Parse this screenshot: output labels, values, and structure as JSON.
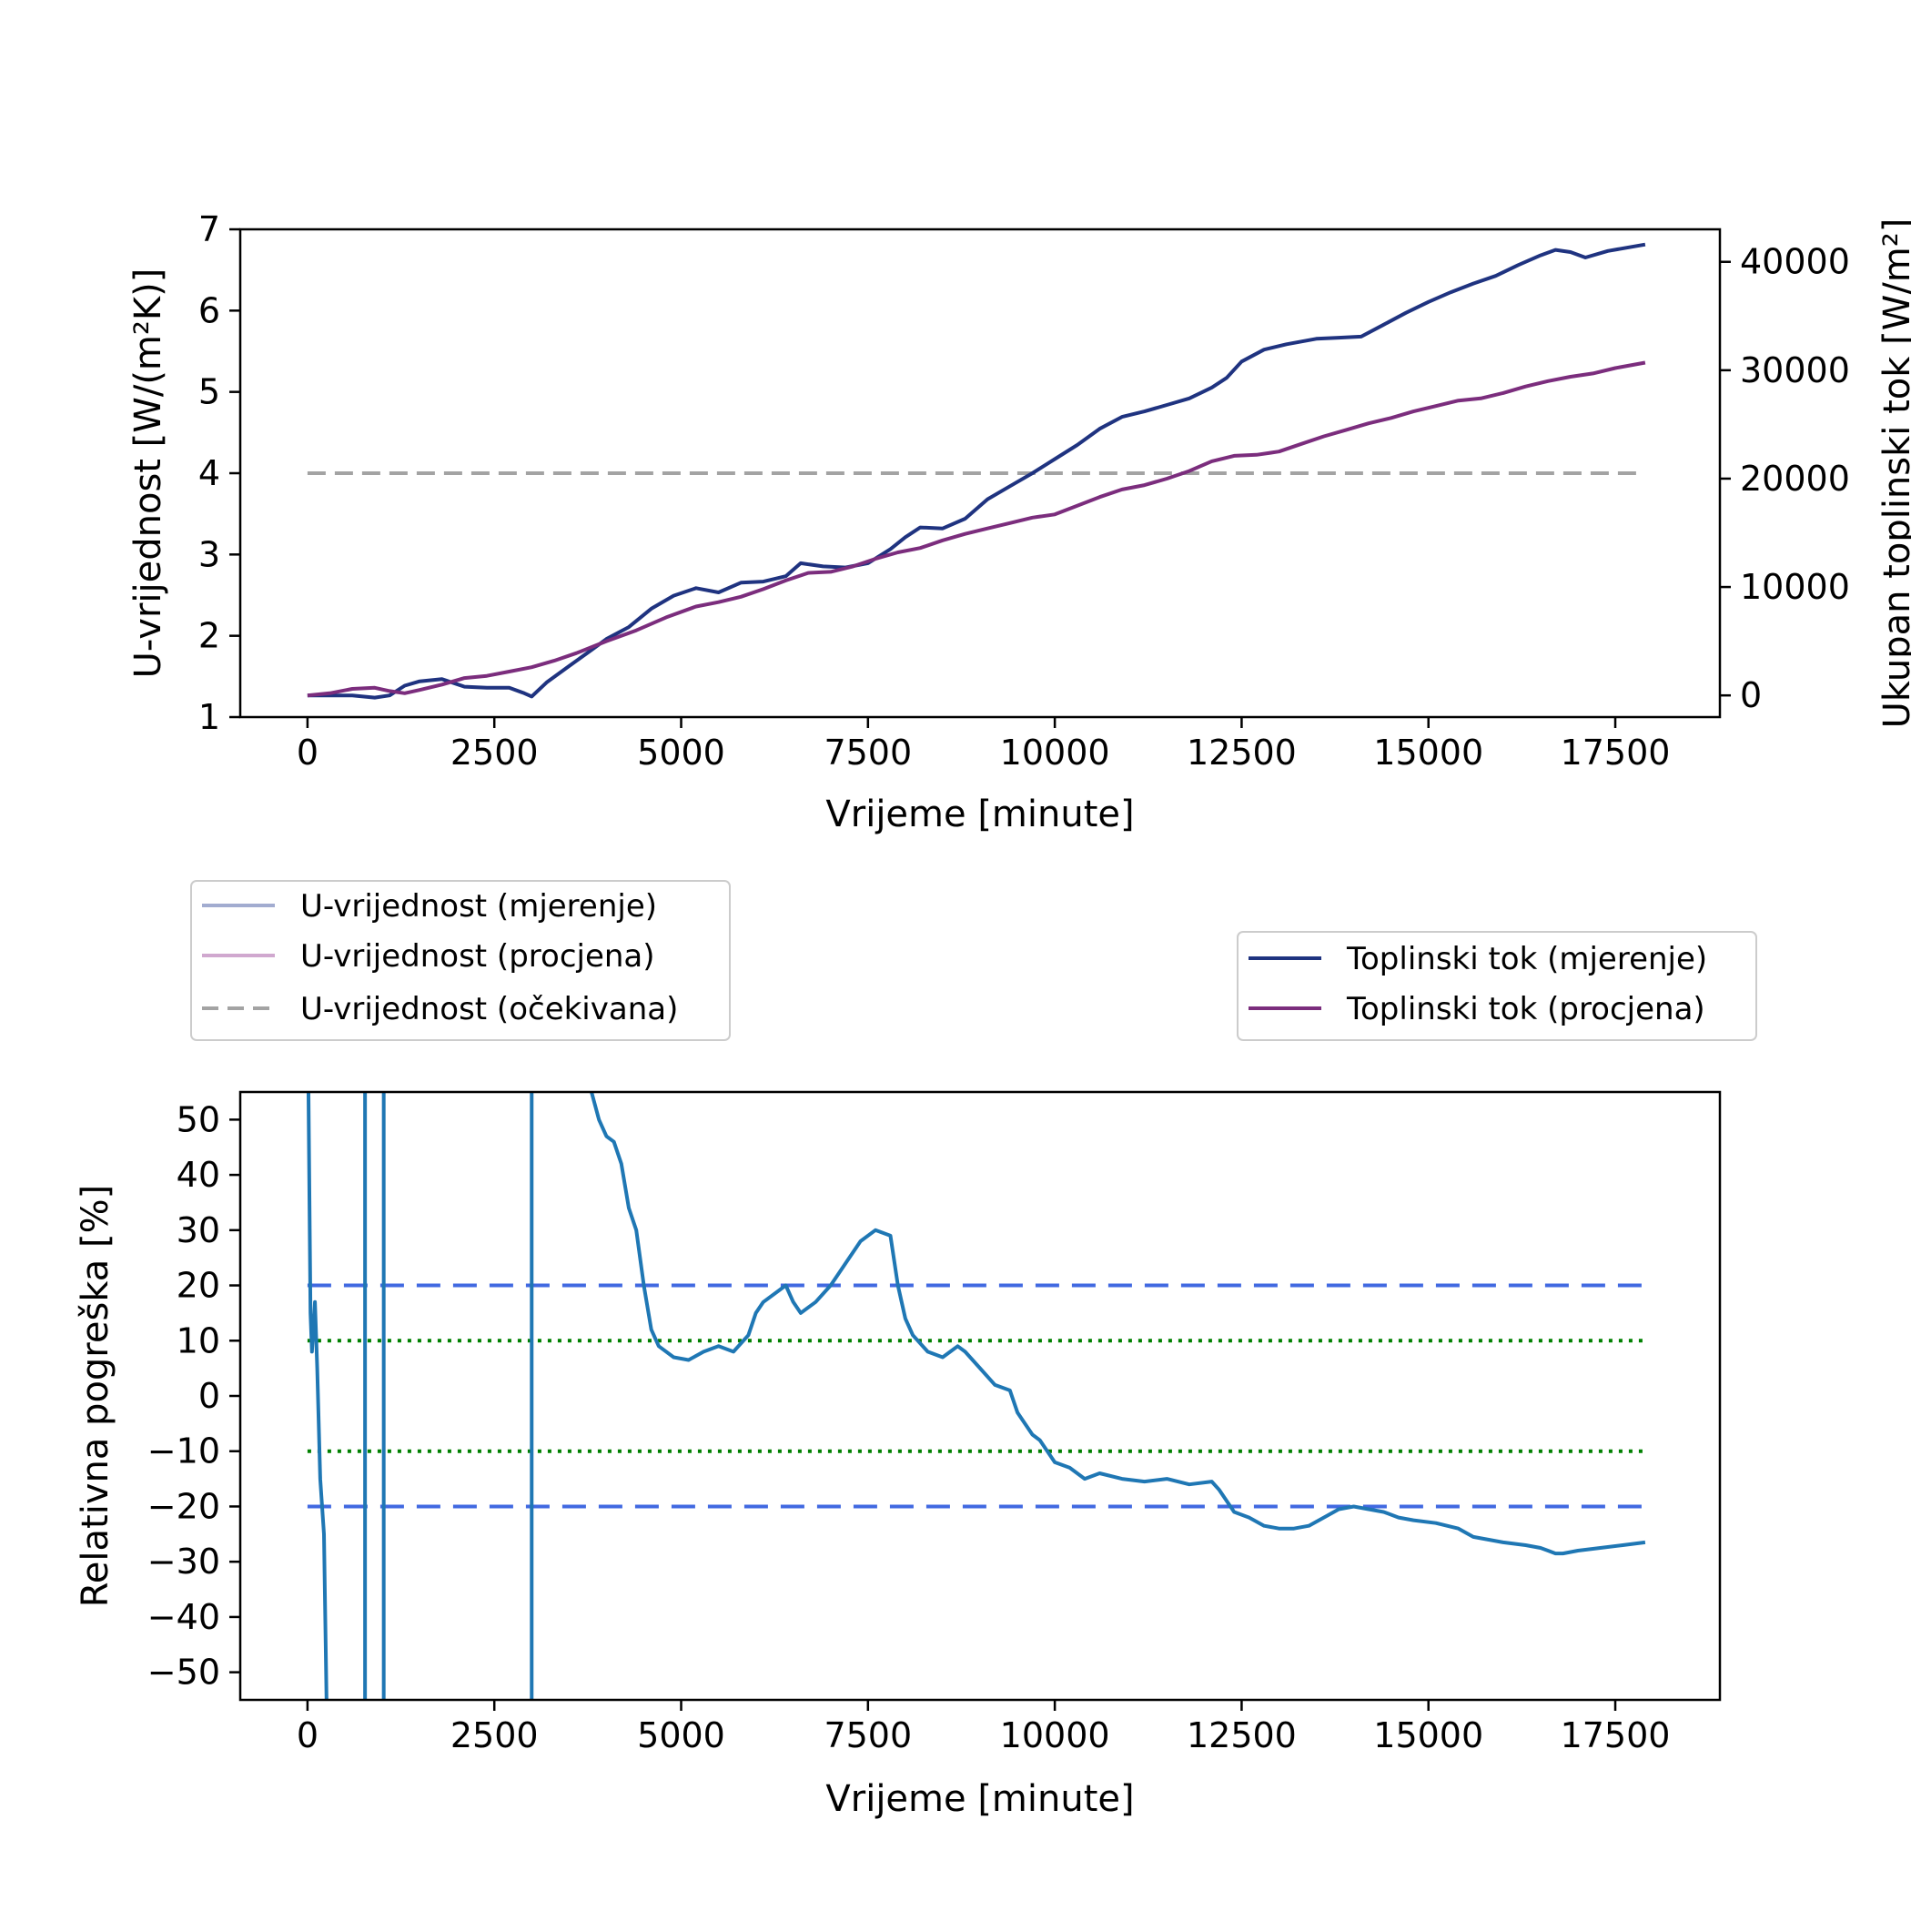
{
  "chart_data": [
    {
      "type": "line",
      "xlabel": "Vrijeme [minute]",
      "ylabel": "U-vrijednost [W/(m²K)]",
      "y2label": "Ukupan toplinski tok [W/m²]",
      "xlim": [
        -900,
        18900
      ],
      "ylim": [
        1,
        7
      ],
      "y2lim": [
        -2000,
        43000
      ],
      "xticks": [
        "0",
        "2500",
        "5000",
        "7500",
        "10000",
        "12500",
        "15000",
        "17500"
      ],
      "yticks": [
        "1",
        "2",
        "3",
        "4",
        "5",
        "6",
        "7"
      ],
      "y2ticks": [
        "0",
        "10000",
        "20000",
        "30000",
        "40000"
      ],
      "grid": false,
      "legends": {
        "left": {
          "placement": "below-left",
          "entries": [
            "U-vrijednost (mjerenje)",
            "U-vrijednost (procjena)",
            "U-vrijednost (očekivana)"
          ]
        },
        "right": {
          "placement": "below-right",
          "entries": [
            "Toplinski tok (mjerenje)",
            "Toplinski tok (procjena)"
          ]
        }
      },
      "series": [
        {
          "name": "U-vrijednost (očekivana)",
          "axis": "left",
          "style": "dashed",
          "color": "#a3a3a3",
          "x": [
            0,
            17900
          ],
          "y": [
            4,
            4
          ]
        },
        {
          "name": "Toplinski tok (mjerenje)",
          "axis": "right",
          "style": "solid",
          "color": "#1f3380",
          "x": [
            0,
            300,
            600,
            900,
            1100,
            1300,
            1500,
            1800,
            2100,
            2400,
            2700,
            2900,
            3000,
            3200,
            3500,
            3800,
            4000,
            4300,
            4600,
            4900,
            5200,
            5500,
            5800,
            6100,
            6400,
            6600,
            6900,
            7200,
            7500,
            7800,
            8000,
            8200,
            8500,
            8800,
            9100,
            9400,
            9700,
            10000,
            10300,
            10600,
            10900,
            11200,
            11500,
            11800,
            12100,
            12300,
            12500,
            12800,
            13100,
            13500,
            13800,
            14100,
            14400,
            14700,
            15000,
            15300,
            15600,
            15900,
            16200,
            16500,
            16700,
            16900,
            17100,
            17400,
            17900
          ],
          "y": [
            0,
            0,
            0,
            -200,
            0,
            900,
            1300,
            1500,
            800,
            700,
            700,
            200,
            -100,
            1200,
            2700,
            4200,
            5200,
            6300,
            8000,
            9200,
            9900,
            9500,
            10400,
            10500,
            11000,
            12200,
            11900,
            11800,
            12200,
            13500,
            14600,
            15500,
            15400,
            16300,
            18100,
            19300,
            20500,
            21800,
            23100,
            24600,
            25700,
            26200,
            26800,
            27400,
            28400,
            29300,
            30800,
            31900,
            32400,
            32900,
            33000,
            33100,
            34200,
            35300,
            36300,
            37200,
            38000,
            38700,
            39700,
            40600,
            41100,
            40900,
            40400,
            41000,
            41600
          ]
        },
        {
          "name": "Toplinski tok (procjena)",
          "axis": "right",
          "style": "solid",
          "color": "#7b2d7d",
          "x": [
            0,
            300,
            600,
            900,
            1100,
            1300,
            1500,
            1800,
            2100,
            2400,
            2700,
            3000,
            3300,
            3600,
            4000,
            4400,
            4800,
            5200,
            5500,
            5800,
            6100,
            6400,
            6700,
            7000,
            7300,
            7600,
            7900,
            8200,
            8500,
            8800,
            9100,
            9400,
            9700,
            10000,
            10300,
            10600,
            10900,
            11200,
            11500,
            11800,
            12100,
            12400,
            12700,
            13000,
            13300,
            13600,
            13900,
            14200,
            14500,
            14800,
            15100,
            15400,
            15700,
            16000,
            16300,
            16600,
            16900,
            17200,
            17500,
            17900
          ],
          "y": [
            0,
            200,
            600,
            700,
            400,
            200,
            500,
            1000,
            1600,
            1800,
            2200,
            2600,
            3200,
            3900,
            5000,
            6000,
            7200,
            8200,
            8600,
            9100,
            9800,
            10600,
            11300,
            11400,
            11900,
            12600,
            13200,
            13600,
            14300,
            14900,
            15400,
            15900,
            16400,
            16700,
            17500,
            18300,
            19000,
            19400,
            20000,
            20700,
            21600,
            22100,
            22200,
            22500,
            23200,
            23900,
            24500,
            25100,
            25600,
            26200,
            26700,
            27200,
            27400,
            27900,
            28500,
            29000,
            29400,
            29700,
            30200,
            30700
          ]
        }
      ]
    },
    {
      "type": "line",
      "xlabel": "Vrijeme [minute]",
      "ylabel": "Relativna pogreška [%]",
      "xlim": [
        -900,
        18900
      ],
      "ylim": [
        -55,
        55
      ],
      "xticks": [
        "0",
        "2500",
        "5000",
        "7500",
        "10000",
        "12500",
        "15000",
        "17500"
      ],
      "yticks": [
        "50",
        "40",
        "30",
        "20",
        "10",
        "0",
        "−10",
        "−20",
        "−30",
        "−40",
        "−50"
      ],
      "grid": false,
      "reference_lines": [
        {
          "y": 20,
          "style": "dashed",
          "color": "#4169e1"
        },
        {
          "y": -20,
          "style": "dashed",
          "color": "#4169e1"
        },
        {
          "y": 10,
          "style": "dotted",
          "color": "#008000"
        },
        {
          "y": -10,
          "style": "dotted",
          "color": "#008000"
        }
      ],
      "vertical_spikes_at": [
        770,
        1020,
        3000
      ],
      "series": [
        {
          "color": "#1f77b4",
          "x": [
            3800,
            3900,
            4000,
            4100,
            4200,
            4300,
            4400,
            4500,
            4600,
            4700,
            4900,
            5100,
            5300,
            5500,
            5700,
            5900,
            6000,
            6100,
            6300,
            6400,
            6500,
            6600,
            6800,
            7000,
            7200,
            7400,
            7600,
            7800,
            7900,
            8000,
            8100,
            8300,
            8500,
            8600,
            8700,
            8800,
            9000,
            9200,
            9400,
            9500,
            9600,
            9700,
            9800,
            9900,
            10000,
            10200,
            10400,
            10600,
            10900,
            11200,
            11500,
            11800,
            12100,
            12200,
            12400,
            12600,
            12800,
            13000,
            13200,
            13400,
            13600,
            13800,
            14000,
            14200,
            14400,
            14600,
            14800,
            15100,
            15400,
            15600,
            15800,
            16000,
            16300,
            16500,
            16600,
            16700,
            16800,
            17000,
            17300,
            17600,
            17900
          ],
          "y": [
            55,
            50,
            47,
            46,
            42,
            34,
            30,
            20,
            12,
            9,
            7,
            6.5,
            8,
            9,
            8,
            11,
            15,
            17,
            19,
            20,
            17,
            15,
            17,
            20,
            24,
            28,
            30,
            29,
            20,
            14,
            11,
            8,
            7,
            8,
            9,
            8,
            5,
            2,
            1,
            -3,
            -5,
            -7,
            -8,
            -10,
            -12,
            -13,
            -15,
            -14,
            -15,
            -15.5,
            -15,
            -16,
            -15.5,
            -17,
            -21,
            -22,
            -23.5,
            -24,
            -24,
            -23.5,
            -22,
            -20.5,
            -20,
            -20.5,
            -21,
            -22,
            -22.5,
            -23,
            -24,
            -25.5,
            -26,
            -26.5,
            -27,
            -27.5,
            -28,
            -28.5,
            -28.5,
            -28,
            -27.5,
            -27,
            -26.5
          ]
        }
      ]
    }
  ]
}
